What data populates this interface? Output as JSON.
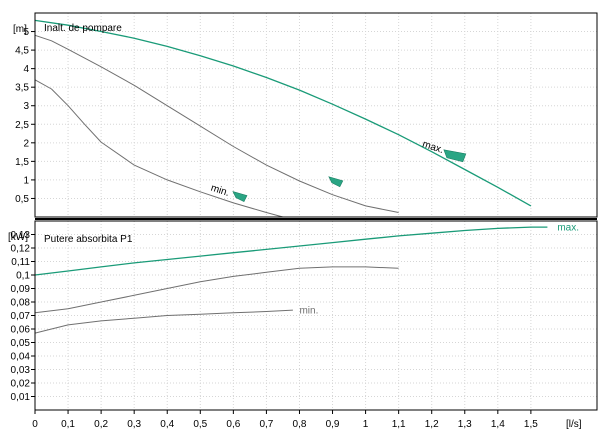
{
  "chart_data": [
    {
      "type": "line",
      "title": "Inalt. de pompare",
      "ylabel": "[m]",
      "xlabel": "",
      "xlim": [
        0,
        1.7
      ],
      "ylim": [
        0,
        5.5
      ],
      "yticks": [
        "0,5",
        "1",
        "1,5",
        "2",
        "2,5",
        "3",
        "3,5",
        "4",
        "4,5",
        "5"
      ],
      "ytick_values": [
        0.5,
        1,
        1.5,
        2,
        2.5,
        3,
        3.5,
        4,
        4.5,
        5
      ],
      "grid": true,
      "series": [
        {
          "name": "max.",
          "color": "#1a9b78",
          "x": [
            0,
            0.1,
            0.2,
            0.3,
            0.4,
            0.5,
            0.6,
            0.7,
            0.8,
            0.9,
            1.0,
            1.1,
            1.2,
            1.3,
            1.4,
            1.5
          ],
          "y": [
            5.3,
            5.17,
            5.0,
            4.82,
            4.6,
            4.35,
            4.07,
            3.76,
            3.42,
            3.04,
            2.64,
            2.22,
            1.76,
            1.28,
            0.8,
            0.3
          ]
        },
        {
          "name": "",
          "color": "#707070",
          "x": [
            0,
            0.05,
            0.1,
            0.2,
            0.3,
            0.4,
            0.5,
            0.6,
            0.7,
            0.8,
            0.9,
            1.0,
            1.1
          ],
          "y": [
            4.9,
            4.75,
            4.52,
            4.05,
            3.55,
            3.0,
            2.45,
            1.9,
            1.4,
            0.97,
            0.6,
            0.3,
            0.12
          ]
        },
        {
          "name": "min.",
          "color": "#707070",
          "x": [
            0,
            0.05,
            0.1,
            0.15,
            0.2,
            0.3,
            0.4,
            0.5,
            0.6,
            0.7,
            0.75
          ],
          "y": [
            3.7,
            3.45,
            3.0,
            2.5,
            2.02,
            1.4,
            1.0,
            0.68,
            0.38,
            0.12,
            0.0
          ]
        }
      ],
      "annotations": [
        {
          "text": "max.",
          "x": 1.17,
          "y": 1.9
        },
        {
          "text": "min.",
          "x": 0.53,
          "y": 0.72
        }
      ],
      "markers": [
        {
          "x": 1.27,
          "y": 1.65,
          "color": "#2aa584"
        },
        {
          "x": 0.91,
          "y": 0.95,
          "color": "#2aa584"
        },
        {
          "x": 0.62,
          "y": 0.55,
          "color": "#2aa584"
        }
      ]
    },
    {
      "type": "line",
      "title": "Putere absorbita P1",
      "ylabel": "[kW]",
      "xlabel": "[l/s]",
      "xlim": [
        0,
        1.7
      ],
      "ylim": [
        0,
        0.14
      ],
      "xticks": [
        "0",
        "0,1",
        "0,2",
        "0,3",
        "0,4",
        "0,5",
        "0,6",
        "0,7",
        "0,8",
        "0,9",
        "1",
        "1,1",
        "1,2",
        "1,3",
        "1,4",
        "1,5"
      ],
      "xtick_values": [
        0,
        0.1,
        0.2,
        0.3,
        0.4,
        0.5,
        0.6,
        0.7,
        0.8,
        0.9,
        1.0,
        1.1,
        1.2,
        1.3,
        1.4,
        1.5
      ],
      "yticks": [
        "0,01",
        "0,02",
        "0,03",
        "0,04",
        "0,05",
        "0,06",
        "0,07",
        "0,08",
        "0,09",
        "0,1",
        "0,11",
        "0,12",
        "0,13"
      ],
      "ytick_values": [
        0.01,
        0.02,
        0.03,
        0.04,
        0.05,
        0.06,
        0.07,
        0.08,
        0.09,
        0.1,
        0.11,
        0.12,
        0.13
      ],
      "grid": true,
      "series": [
        {
          "name": "max.",
          "color": "#1a9b78",
          "x": [
            0,
            0.1,
            0.2,
            0.3,
            0.4,
            0.5,
            0.6,
            0.7,
            0.8,
            0.9,
            1.0,
            1.1,
            1.2,
            1.3,
            1.4,
            1.5,
            1.55
          ],
          "y": [
            0.1,
            0.103,
            0.106,
            0.109,
            0.1115,
            0.114,
            0.1165,
            0.119,
            0.1215,
            0.124,
            0.1265,
            0.129,
            0.131,
            0.133,
            0.1345,
            0.1355,
            0.1355
          ]
        },
        {
          "name": "",
          "color": "#707070",
          "x": [
            0,
            0.1,
            0.2,
            0.3,
            0.4,
            0.5,
            0.6,
            0.7,
            0.8,
            0.9,
            1.0,
            1.1
          ],
          "y": [
            0.072,
            0.075,
            0.08,
            0.085,
            0.09,
            0.095,
            0.099,
            0.102,
            0.105,
            0.106,
            0.106,
            0.105
          ]
        },
        {
          "name": "min.",
          "color": "#707070",
          "x": [
            0,
            0.05,
            0.1,
            0.2,
            0.3,
            0.4,
            0.5,
            0.6,
            0.7,
            0.78
          ],
          "y": [
            0.057,
            0.06,
            0.063,
            0.066,
            0.068,
            0.07,
            0.071,
            0.072,
            0.073,
            0.074
          ]
        }
      ],
      "annotations": [
        {
          "text": "max.",
          "x": 1.58,
          "y": 0.1355,
          "color": "#1a9b78"
        },
        {
          "text": "min.",
          "x": 0.8,
          "y": 0.074,
          "color": "#707070"
        }
      ]
    }
  ]
}
